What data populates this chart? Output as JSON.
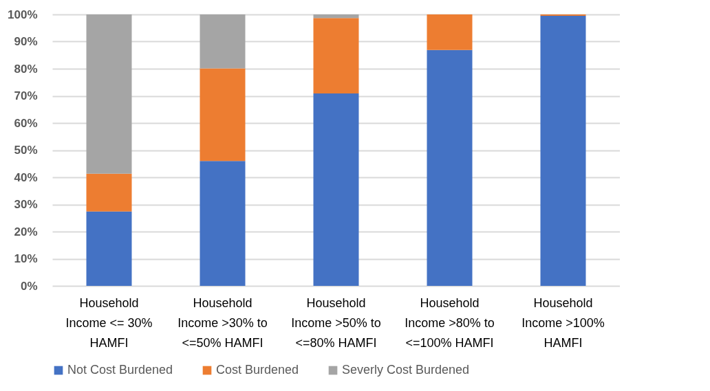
{
  "chart_data": {
    "type": "bar",
    "stacked": true,
    "categories": [
      "Household Income <= 30% HAMFI",
      "Household Income >30% to <=50% HAMFI",
      "Household Income >50% to <=80% HAMFI",
      "Household Income >80% to <=100% HAMFI",
      "Household Income >100% HAMFI"
    ],
    "series": [
      {
        "name": "Not Cost Burdened",
        "color": "#4472c4",
        "values": [
          27.4,
          46.0,
          70.9,
          86.9,
          99.5
        ]
      },
      {
        "name": "Cost Burdened",
        "color": "#ed7d31",
        "values": [
          13.9,
          34.1,
          27.8,
          13.1,
          0.5
        ]
      },
      {
        "name": "Severly Cost Burdened",
        "color": "#a5a5a5",
        "values": [
          58.7,
          19.9,
          1.3,
          null,
          null
        ]
      }
    ],
    "ylim": [
      0,
      100
    ],
    "yticks": [
      {
        "value": 0,
        "label": "0%"
      },
      {
        "value": 10,
        "label": "10%"
      },
      {
        "value": 20,
        "label": "20%"
      },
      {
        "value": 30,
        "label": "30%"
      },
      {
        "value": 40,
        "label": "40%"
      },
      {
        "value": 50,
        "label": "50%"
      },
      {
        "value": 60,
        "label": "60%"
      },
      {
        "value": 70,
        "label": "70%"
      },
      {
        "value": 80,
        "label": "80%"
      },
      {
        "value": 90,
        "label": "90%"
      },
      {
        "value": 100,
        "label": "100%"
      }
    ],
    "grid": "y",
    "legend": "bottom"
  }
}
